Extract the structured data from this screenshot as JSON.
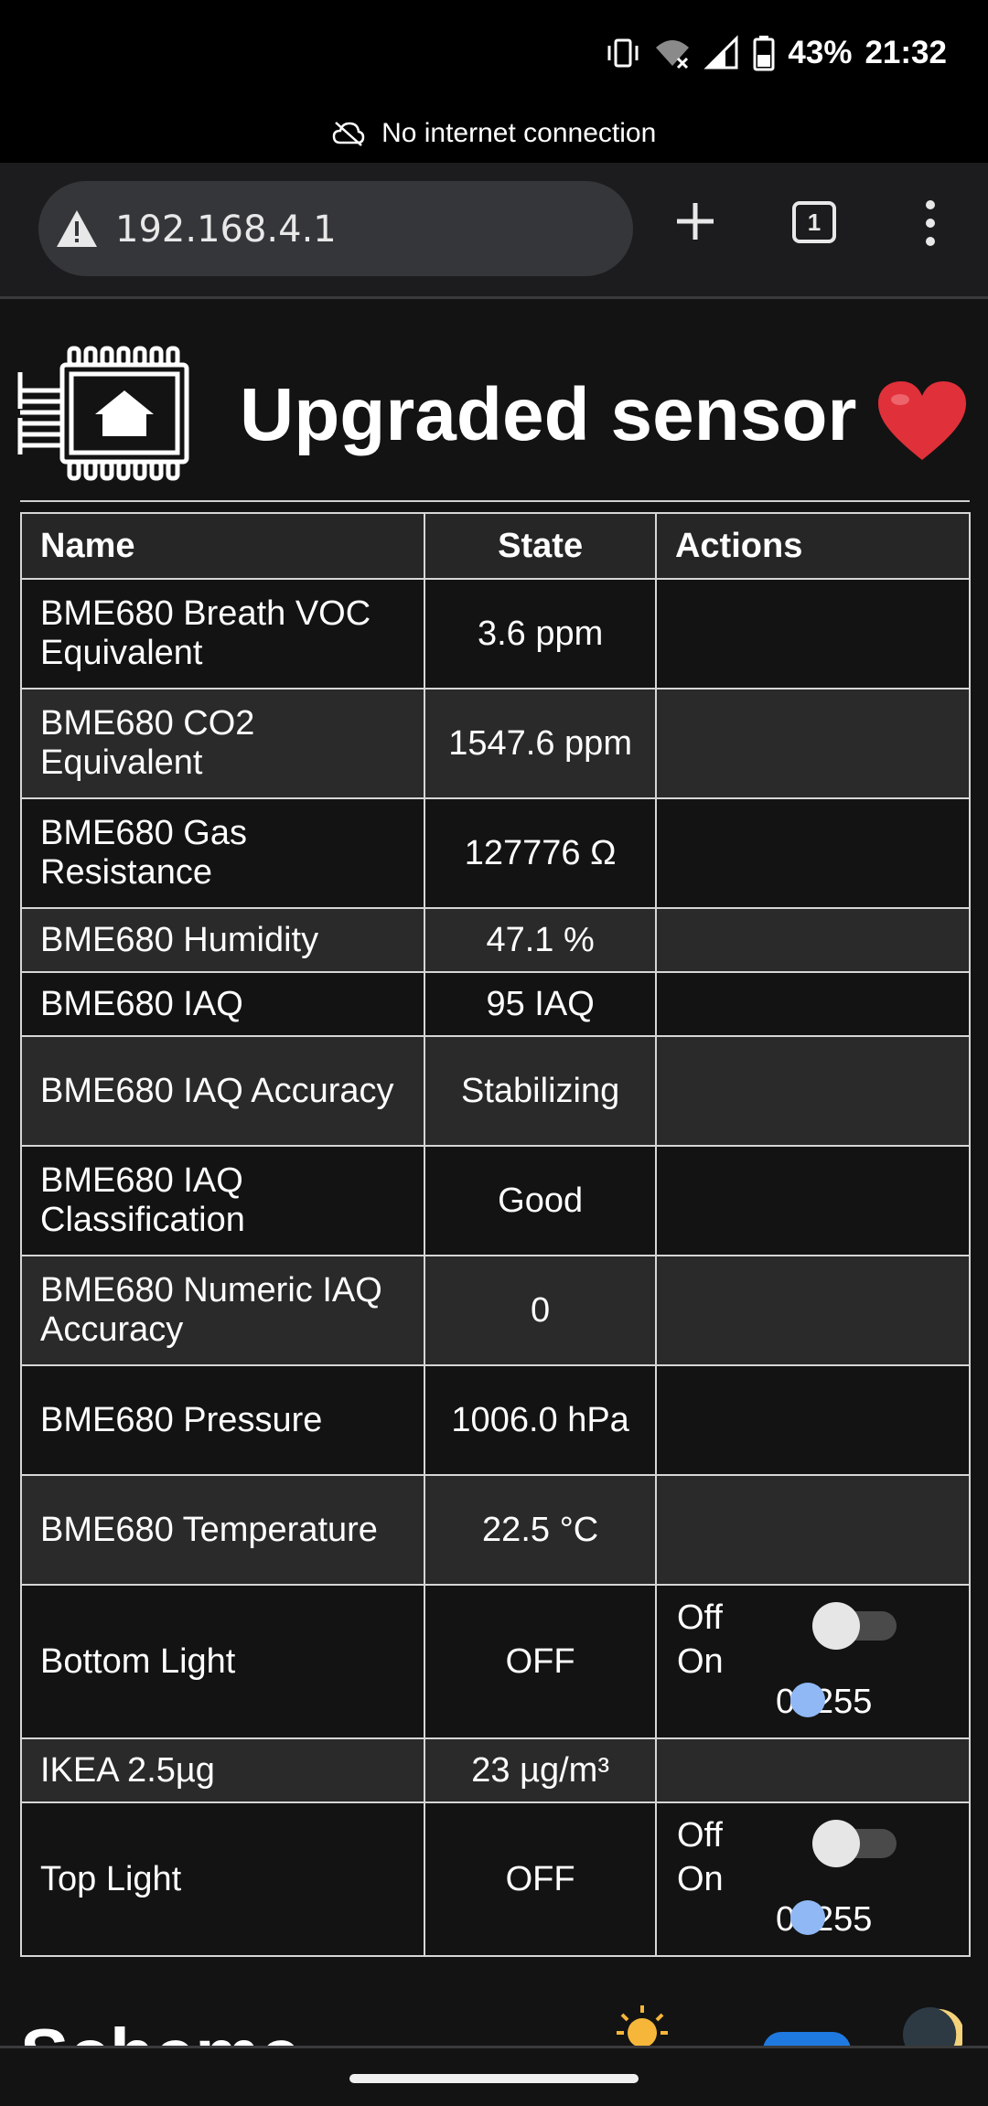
{
  "status_bar": {
    "battery": "43%",
    "time": "21:32",
    "network_banner": "No internet connection",
    "icons": [
      "vibrate-icon",
      "wifi-off-icon",
      "signal-icon",
      "battery-icon"
    ]
  },
  "browser": {
    "url": "192.168.4.1",
    "tab_count": "1",
    "icons": [
      "warning-icon",
      "new-tab-icon",
      "tabs-icon",
      "menu-icon"
    ]
  },
  "page": {
    "title": "Upgraded sensor",
    "logo_icon": "chip-home-icon",
    "heart_icon": "heart-icon",
    "table": {
      "headers": {
        "name": "Name",
        "state": "State",
        "actions": "Actions"
      },
      "rows": [
        {
          "name": "BME680 Breath VOC Equivalent",
          "state": "3.6 ppm"
        },
        {
          "name": "BME680 CO2 Equivalent",
          "state": "1547.6 ppm"
        },
        {
          "name": "BME680 Gas Resistance",
          "state": "127776 Ω"
        },
        {
          "name": "BME680 Humidity",
          "state": "47.1 %"
        },
        {
          "name": "BME680 IAQ",
          "state": "95 IAQ"
        },
        {
          "name": "BME680 IAQ Accuracy",
          "state": "Stabilizing"
        },
        {
          "name": "BME680 IAQ Classification",
          "state": "Good"
        },
        {
          "name": "BME680 Numeric IAQ Accuracy",
          "state": "0"
        },
        {
          "name": "BME680 Pressure",
          "state": "1006.0 hPa"
        },
        {
          "name": "BME680 Temperature",
          "state": "22.5 °C"
        },
        {
          "name": "Bottom Light",
          "state": "OFF",
          "actions": {
            "off_label": "Off",
            "on_label": "On",
            "range_min": "0",
            "range_max": "255",
            "toggle_on": false
          }
        },
        {
          "name": "IKEA 2.5µg",
          "state": "23 µg/m³"
        },
        {
          "name": "Top Light",
          "state": "OFF",
          "actions": {
            "off_label": "Off",
            "on_label": "On",
            "range_min": "0",
            "range_max": "255",
            "toggle_on": false
          }
        }
      ]
    },
    "scheme": {
      "label": "Scheme",
      "icons": [
        "sun-icon",
        "moon-icon"
      ]
    }
  },
  "colors": {
    "background": "#131313",
    "row_alt": "#2a2a2a",
    "toggle_knob": "#e6e6e6",
    "slider_thumb": "#8fb8f5",
    "scheme_toggle": "#1f7ae0",
    "heart": "#e0303a"
  }
}
